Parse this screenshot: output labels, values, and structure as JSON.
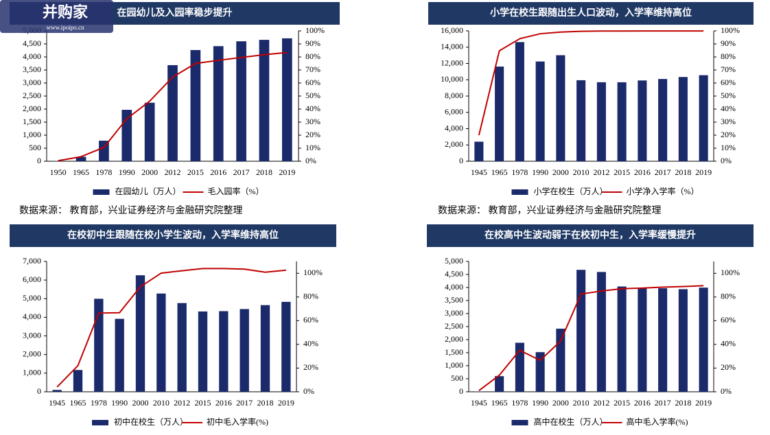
{
  "chart_data": [
    {
      "type": "bar",
      "title": "在园幼儿及入园率稳步提升",
      "categories": [
        "1950",
        "1965",
        "1978",
        "1990",
        "2000",
        "2012",
        "2015",
        "2016",
        "2017",
        "2018",
        "2019"
      ],
      "series": [
        {
          "name": "在园幼儿（万人）",
          "type": "bar",
          "color": "#1b2a6b",
          "values": [
            14,
            171,
            788,
            1972,
            2244,
            3686,
            4265,
            4414,
            4600,
            4656,
            4714
          ]
        },
        {
          "name": "毛入园率（%）",
          "type": "line",
          "axis": "y2",
          "color": "#c00000",
          "values": [
            0.4,
            3.5,
            10.6,
            32.6,
            46.1,
            64.5,
            75,
            77.4,
            79.6,
            81.7,
            83.4
          ]
        }
      ],
      "ylim": [
        0,
        5000
      ],
      "yticks": [
        0,
        500,
        {
          "value": 1000,
          "label": "1,000"
        },
        {
          "value": 1500,
          "label": "1,500"
        },
        {
          "value": 2000,
          "label": "2,000"
        },
        {
          "value": 2500,
          "label": "2,500"
        },
        {
          "value": 3000,
          "label": "3,000"
        },
        {
          "value": 3500,
          "label": "3,500"
        },
        {
          "value": 4000,
          "label": "4,000"
        },
        {
          "value": 4500,
          "label": "4,500"
        },
        {
          "value": 5000,
          "label": "5,000"
        }
      ],
      "y2lim": [
        0,
        100
      ],
      "y2ticks": [
        {
          "value": 0,
          "label": "0%"
        },
        {
          "value": 10,
          "label": "10%"
        },
        {
          "value": 20,
          "label": "20%"
        },
        {
          "value": 30,
          "label": "30%"
        },
        {
          "value": 40,
          "label": "40%"
        },
        {
          "value": 50,
          "label": "50%"
        },
        {
          "value": 60,
          "label": "60%"
        },
        {
          "value": 70,
          "label": "70%"
        },
        {
          "value": 80,
          "label": "80%"
        },
        {
          "value": 90,
          "label": "90%"
        },
        {
          "value": 100,
          "label": "100%"
        }
      ],
      "source": "数据来源： 教育部，兴业证券经济与金融研究院整理"
    },
    {
      "type": "bar",
      "title": "小学在校生跟随出生人口波动，入学率维持高位",
      "categories": [
        "1945",
        "1965",
        "1978",
        "1990",
        "2000",
        "2010",
        "2012",
        "2015",
        "2016",
        "2017",
        "2018",
        "2019"
      ],
      "series": [
        {
          "name": "小学在校生（万人）",
          "type": "bar",
          "color": "#1b2a6b",
          "values": [
            2400,
            11621,
            14624,
            12241,
            13013,
            9941,
            9696,
            9692,
            9913,
            10094,
            10339,
            10561
          ]
        },
        {
          "name": "小学净入学率（%）",
          "type": "line",
          "axis": "y2",
          "color": "#c00000",
          "values": [
            20,
            84.7,
            94,
            97.8,
            99.1,
            99.7,
            99.85,
            99.88,
            99.92,
            99.91,
            99.95,
            99.94
          ]
        }
      ],
      "ylim": [
        0,
        16000
      ],
      "yticks": [
        0,
        {
          "value": 2000,
          "label": "2,000"
        },
        {
          "value": 4000,
          "label": "4,000"
        },
        {
          "value": 6000,
          "label": "6,000"
        },
        {
          "value": 8000,
          "label": "8,000"
        },
        {
          "value": 10000,
          "label": "10,000"
        },
        {
          "value": 12000,
          "label": "12,000"
        },
        {
          "value": 14000,
          "label": "14,000"
        },
        {
          "value": 16000,
          "label": "16,000"
        }
      ],
      "y2lim": [
        0,
        100
      ],
      "y2ticks": [
        {
          "value": 0,
          "label": "0%"
        },
        {
          "value": 10,
          "label": "10%"
        },
        {
          "value": 20,
          "label": "20%"
        },
        {
          "value": 30,
          "label": "30%"
        },
        {
          "value": 40,
          "label": "40%"
        },
        {
          "value": 50,
          "label": "50%"
        },
        {
          "value": 60,
          "label": "60%"
        },
        {
          "value": 70,
          "label": "70%"
        },
        {
          "value": 80,
          "label": "80%"
        },
        {
          "value": 90,
          "label": "90%"
        },
        {
          "value": 100,
          "label": "100%"
        }
      ],
      "source": "数据来源： 教育部，兴业证券经济与金融研究院整理"
    },
    {
      "type": "bar",
      "title": "在校初中生跟随在校小学生波动，入学率维持高位",
      "categories": [
        "1945",
        "1965",
        "1978",
        "1990",
        "2000",
        "2010",
        "2012",
        "2015",
        "2016",
        "2017",
        "2018",
        "2019"
      ],
      "series": [
        {
          "name": "初中在校生（万人）",
          "type": "bar",
          "color": "#1b2a6b",
          "values": [
            100,
            1170,
            4995,
            3917,
            6256,
            5276,
            4763,
            4312,
            4329,
            4442,
            4653,
            4828
          ]
        },
        {
          "name": "初中毛入学率(%)",
          "type": "line",
          "axis": "y2",
          "color": "#c00000",
          "values": [
            4,
            22,
            66.4,
            66.7,
            88.6,
            100.1,
            102.1,
            104,
            104,
            103.5,
            100.9,
            102.6
          ]
        }
      ],
      "ylim": [
        0,
        7000
      ],
      "yticks": [
        0,
        {
          "value": 1000,
          "label": "1,000"
        },
        {
          "value": 2000,
          "label": "2,000"
        },
        {
          "value": 3000,
          "label": "3,000"
        },
        {
          "value": 4000,
          "label": "4,000"
        },
        {
          "value": 5000,
          "label": "5,000"
        },
        {
          "value": 6000,
          "label": "6,000"
        },
        {
          "value": 7000,
          "label": "7,000"
        }
      ],
      "y2lim": [
        0,
        110
      ],
      "y2ticks": [
        {
          "value": 0,
          "label": "0%"
        },
        {
          "value": 20,
          "label": "20%"
        },
        {
          "value": 40,
          "label": "40%"
        },
        {
          "value": 60,
          "label": "60%"
        },
        {
          "value": 80,
          "label": "80%"
        },
        {
          "value": 100,
          "label": "100%"
        }
      ]
    },
    {
      "type": "bar",
      "title": "在校高中生波动弱于在校初中生，入学率缓慢提升",
      "categories": [
        "1945",
        "1965",
        "1978",
        "1990",
        "2000",
        "2010",
        "2012",
        "2015",
        "2016",
        "2017",
        "2018",
        "2019"
      ],
      "series": [
        {
          "name": "高中在校生（万人）",
          "type": "bar",
          "color": "#1b2a6b",
          "values": [
            10,
            600,
            1880,
            1520,
            2420,
            4677,
            4595,
            4038,
            3970,
            3971,
            3935,
            3995
          ]
        },
        {
          "name": "高中毛入学率(%)",
          "type": "line",
          "axis": "y2",
          "color": "#c00000",
          "values": [
            1,
            14,
            35,
            26.5,
            42.8,
            82.5,
            85,
            87,
            87.5,
            88.3,
            88.8,
            89.5
          ]
        }
      ],
      "ylim": [
        0,
        5000
      ],
      "yticks": [
        0,
        500,
        {
          "value": 1000,
          "label": "1,000"
        },
        {
          "value": 1500,
          "label": "1,500"
        },
        {
          "value": 2000,
          "label": "2,000"
        },
        {
          "value": 2500,
          "label": "2,500"
        },
        {
          "value": 3000,
          "label": "3,000"
        },
        {
          "value": 3500,
          "label": "3,500"
        },
        {
          "value": 4000,
          "label": "4,000"
        },
        {
          "value": 4500,
          "label": "4,500"
        },
        {
          "value": 5000,
          "label": "5,000"
        }
      ],
      "y2lim": [
        0,
        110
      ],
      "y2ticks": [
        {
          "value": 0,
          "label": "0%"
        },
        {
          "value": 20,
          "label": "20%"
        },
        {
          "value": 40,
          "label": "40%"
        },
        {
          "value": 60,
          "label": "60%"
        },
        {
          "value": 80,
          "label": "80%"
        },
        {
          "value": 100,
          "label": "100%"
        }
      ]
    }
  ],
  "watermark": {
    "name": "并购家",
    "url": "www.ipoipo.cn"
  }
}
